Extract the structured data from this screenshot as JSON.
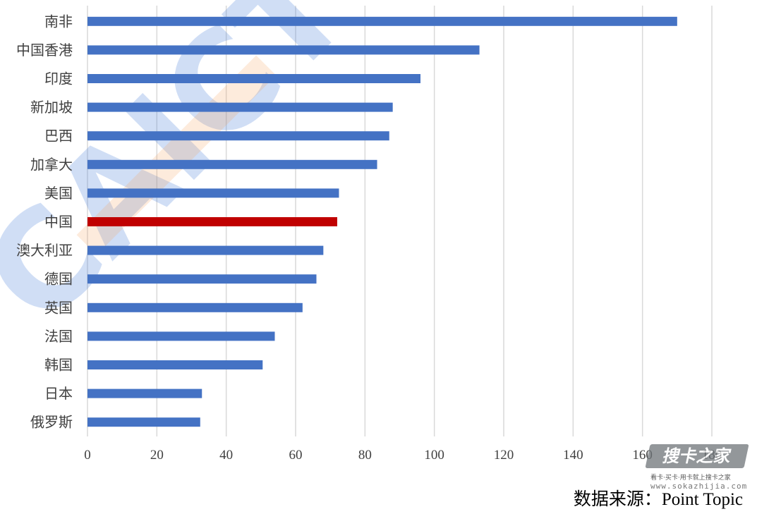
{
  "chart_data": {
    "type": "bar",
    "orientation": "horizontal",
    "categories": [
      "南非",
      "中国香港",
      "印度",
      "新加坡",
      "巴西",
      "加拿大",
      "美国",
      "中国",
      "澳大利亚",
      "德国",
      "英国",
      "法国",
      "韩国",
      "日本",
      "俄罗斯"
    ],
    "values": [
      170,
      113,
      96,
      88,
      87,
      83.5,
      72.5,
      72,
      68,
      66,
      62,
      54,
      50.5,
      33,
      32.5
    ],
    "highlight_index": 7,
    "xlim": [
      0,
      180
    ],
    "xticks": [
      0,
      20,
      40,
      60,
      80,
      100,
      120,
      140,
      160,
      180
    ],
    "grid": "vertical",
    "bar_color": "#4472c4",
    "highlight_color": "#c00000",
    "title": "",
    "xlabel": "",
    "ylabel": ""
  },
  "source_text": "数据来源：Point  Topic",
  "watermark": {
    "center_text": "CAICT",
    "logo_text": "搜卡之家",
    "tagline": "看卡·买卡·用卡就上搜卡之家",
    "url": "www.sokazhijia.com"
  }
}
